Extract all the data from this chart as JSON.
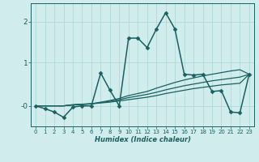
{
  "xlabel": "Humidex (Indice chaleur)",
  "bg_color": "#d0ecec",
  "grid_color": "#aad4d4",
  "line_color": "#1a6060",
  "xlim": [
    -0.5,
    23.5
  ],
  "ylim": [
    -0.55,
    2.45
  ],
  "x_ticks": [
    0,
    1,
    2,
    3,
    4,
    5,
    6,
    7,
    8,
    9,
    10,
    11,
    12,
    13,
    14,
    15,
    16,
    17,
    18,
    19,
    20,
    21,
    22,
    23
  ],
  "y_ticks": [
    -0.05,
    1.0,
    2.0
  ],
  "y_tick_labels": [
    "-0",
    "1",
    "2"
  ],
  "series": [
    {
      "x": [
        0,
        1,
        2,
        3,
        4,
        5,
        6,
        7,
        8,
        9,
        10,
        11,
        12,
        13,
        14,
        15,
        16,
        17,
        18,
        19,
        20,
        21,
        22,
        23
      ],
      "y": [
        -0.05,
        -0.12,
        -0.2,
        -0.33,
        -0.08,
        -0.05,
        -0.05,
        0.75,
        0.33,
        -0.05,
        1.6,
        1.6,
        1.37,
        1.82,
        2.22,
        1.82,
        0.72,
        0.7,
        0.72,
        0.3,
        0.32,
        -0.2,
        -0.22,
        0.72
      ],
      "marker": "D",
      "markersize": 2.5,
      "linewidth": 1.1
    },
    {
      "x": [
        0,
        1,
        2,
        3,
        4,
        5,
        6,
        7,
        8,
        9,
        10,
        11,
        12,
        13,
        14,
        15,
        16,
        17,
        18,
        19,
        20,
        21,
        22,
        23
      ],
      "y": [
        -0.05,
        -0.05,
        -0.05,
        -0.05,
        -0.03,
        -0.02,
        0.0,
        0.04,
        0.08,
        0.13,
        0.2,
        0.25,
        0.3,
        0.38,
        0.45,
        0.52,
        0.58,
        0.63,
        0.68,
        0.72,
        0.76,
        0.8,
        0.83,
        0.72
      ],
      "marker": null,
      "markersize": 0,
      "linewidth": 0.9
    },
    {
      "x": [
        0,
        1,
        2,
        3,
        4,
        5,
        6,
        7,
        8,
        9,
        10,
        11,
        12,
        13,
        14,
        15,
        16,
        17,
        18,
        19,
        20,
        21,
        22,
        23
      ],
      "y": [
        -0.05,
        -0.05,
        -0.05,
        -0.05,
        -0.03,
        -0.01,
        0.0,
        0.03,
        0.06,
        0.1,
        0.15,
        0.19,
        0.23,
        0.28,
        0.34,
        0.39,
        0.44,
        0.48,
        0.52,
        0.56,
        0.59,
        0.62,
        0.65,
        0.72
      ],
      "marker": null,
      "markersize": 0,
      "linewidth": 0.9
    },
    {
      "x": [
        0,
        1,
        2,
        3,
        4,
        5,
        6,
        7,
        8,
        9,
        10,
        11,
        12,
        13,
        14,
        15,
        16,
        17,
        18,
        19,
        20,
        21,
        22,
        23
      ],
      "y": [
        -0.05,
        -0.05,
        -0.05,
        -0.05,
        -0.02,
        -0.01,
        0.0,
        0.02,
        0.04,
        0.07,
        0.1,
        0.13,
        0.16,
        0.2,
        0.25,
        0.29,
        0.33,
        0.37,
        0.4,
        0.43,
        0.46,
        0.48,
        0.5,
        0.72
      ],
      "marker": null,
      "markersize": 0,
      "linewidth": 0.9
    }
  ]
}
